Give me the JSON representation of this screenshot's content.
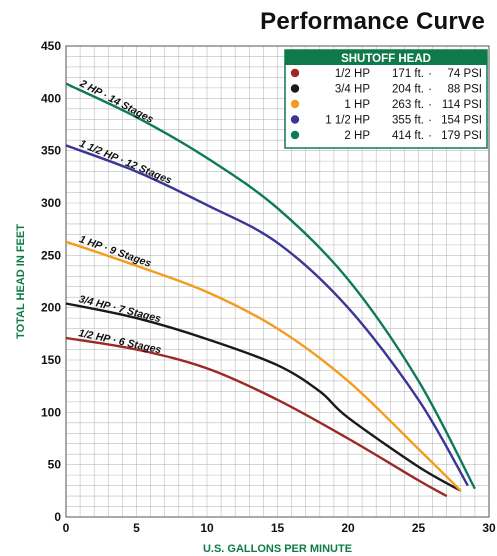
{
  "chart_data": {
    "type": "line",
    "title": "Performance Curve",
    "xlabel": "U.S. GALLONS PER MINUTE",
    "ylabel": "TOTAL HEAD IN FEET",
    "xlim": [
      0,
      30
    ],
    "ylim": [
      0,
      450
    ],
    "xticks": [
      0,
      5,
      10,
      15,
      20,
      25,
      30
    ],
    "yticks": [
      0,
      50,
      100,
      150,
      200,
      250,
      300,
      350,
      400,
      450
    ],
    "grid": true,
    "legend_placement": "top-right",
    "legend": {
      "title": "SHUTOFF HEAD",
      "header_color": "#0e7a4a",
      "entries": [
        {
          "hp": "1/2 HP",
          "ft": "171 ft.",
          "psi": "74 PSI",
          "color": "#9b2a26"
        },
        {
          "hp": "3/4 HP",
          "ft": "204 ft.",
          "psi": "88 PSI",
          "color": "#1a1a1a"
        },
        {
          "hp": "1 HP",
          "ft": "263 ft.",
          "psi": "114 PSI",
          "color": "#f39c1f"
        },
        {
          "hp": "1 1/2 HP",
          "ft": "355 ft.",
          "psi": "154 PSI",
          "color": "#3b3596"
        },
        {
          "hp": "2 HP",
          "ft": "414 ft.",
          "psi": "179 PSI",
          "color": "#0e7a5a"
        }
      ]
    },
    "series": [
      {
        "name": "1/2 HP · 6 Stages",
        "color": "#9b2a26",
        "x": [
          0,
          5,
          10,
          15,
          20,
          25,
          27
        ],
        "y": [
          171,
          160,
          142,
          112,
          75,
          35,
          20
        ]
      },
      {
        "name": "3/4 HP · 7 Stages",
        "color": "#1a1a1a",
        "x": [
          0,
          5,
          10,
          15,
          18,
          20,
          25,
          28
        ],
        "y": [
          204,
          190,
          170,
          145,
          120,
          95,
          48,
          25
        ]
      },
      {
        "name": "1 HP · 9 Stages",
        "color": "#f39c1f",
        "x": [
          0,
          5,
          10,
          15,
          20,
          25,
          28
        ],
        "y": [
          263,
          240,
          215,
          180,
          130,
          65,
          25
        ]
      },
      {
        "name": "1 1/2 HP · 12 Stages",
        "color": "#3b3596",
        "x": [
          0,
          5,
          10,
          15,
          20,
          25,
          28.5
        ],
        "y": [
          355,
          330,
          298,
          262,
          200,
          112,
          30
        ]
      },
      {
        "name": "2 HP · 14 Stages",
        "color": "#0e7a5a",
        "x": [
          0,
          5,
          10,
          15,
          20,
          25,
          29
        ],
        "y": [
          414,
          382,
          343,
          295,
          227,
          130,
          27
        ]
      }
    ]
  }
}
